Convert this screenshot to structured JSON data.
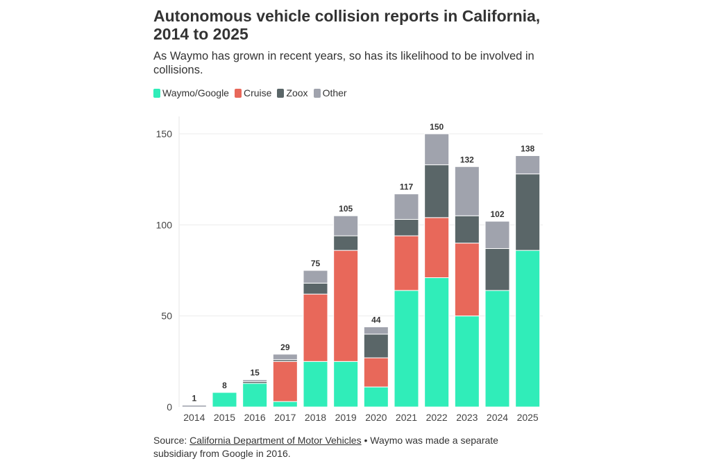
{
  "chart_data": {
    "type": "bar",
    "stacked": true,
    "title": "Autonomous vehicle collision reports in California, 2014 to 2025",
    "subtitle": "As Waymo has grown in recent years, so has its likelihood to be involved in collisions.",
    "categories": [
      "2014",
      "2015",
      "2016",
      "2017",
      "2018",
      "2019",
      "2020",
      "2021",
      "2022",
      "2023",
      "2024",
      "2025"
    ],
    "series": [
      {
        "name": "Waymo/Google",
        "color": "#30edb9",
        "values": [
          0,
          8,
          13,
          3,
          25,
          25,
          11,
          64,
          71,
          50,
          64,
          86
        ]
      },
      {
        "name": "Cruise",
        "color": "#e8685a",
        "values": [
          0,
          0,
          0,
          22,
          37,
          61,
          16,
          30,
          33,
          40,
          0,
          0
        ]
      },
      {
        "name": "Zoox",
        "color": "#5a6668",
        "values": [
          0,
          0,
          1,
          1,
          6,
          8,
          13,
          9,
          29,
          15,
          23,
          42
        ]
      },
      {
        "name": "Other",
        "color": "#a0a3ad",
        "values": [
          1,
          0,
          1,
          3,
          7,
          11,
          4,
          14,
          17,
          27,
          15,
          10
        ]
      }
    ],
    "totals": [
      "1",
      "8",
      "15",
      "29",
      "75",
      "105",
      "44",
      "117",
      "150",
      "132",
      "102",
      "138"
    ],
    "yticks": [
      "0",
      "50",
      "100",
      "150"
    ],
    "ylim": [
      0,
      150
    ],
    "xlabel": "",
    "ylabel": "",
    "grid": true,
    "legend": "top-left"
  },
  "source": {
    "prefix": "Source: ",
    "link_text": "California Department of Motor Vehicles",
    "suffix": " • Waymo was made a separate subsidiary from Google in 2016."
  }
}
